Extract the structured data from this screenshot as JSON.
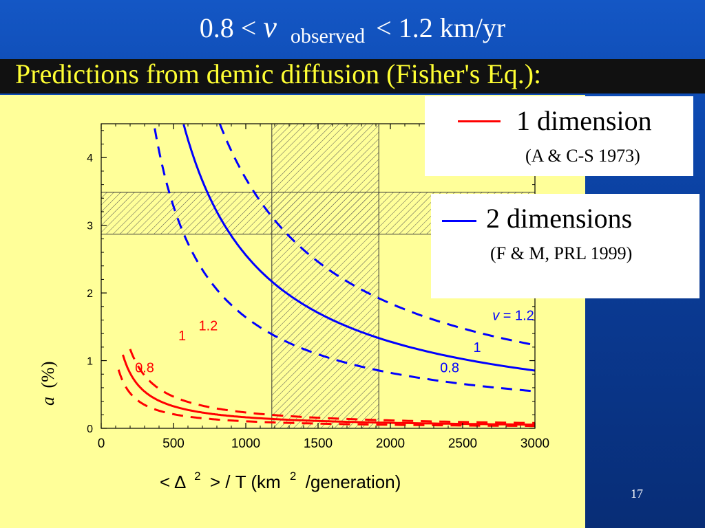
{
  "title": {
    "prefix": "0.8 <",
    "v_symbol": "v",
    "subscript": "observed",
    "suffix": "< 1.2 km/yr"
  },
  "subtitle": "Predictions from demic diffusion (Fisher's Eq.):",
  "legend": {
    "one_d": {
      "label": "1 dimension",
      "reference": "(A & C-S 1973)",
      "color": "#ff0000"
    },
    "two_d": {
      "label": "2 dimensions",
      "reference": "(F & M, PRL 1999)",
      "color": "#0000ff"
    }
  },
  "slide_number": "17",
  "chart_data": {
    "type": "line",
    "xlim": [
      0,
      3000
    ],
    "ylim": [
      0,
      4.5
    ],
    "xticks": [
      0,
      500,
      1000,
      1500,
      2000,
      2500,
      3000
    ],
    "yticks": [
      0,
      1,
      2,
      3,
      4
    ],
    "xlabel": "< Δ 2 > / T  (km 2 /generation)",
    "ylabel": "a  (%)",
    "shaded_regions": [
      {
        "axis": "y",
        "range": [
          2.87,
          3.49
        ]
      },
      {
        "axis": "x",
        "range": [
          1180,
          1920
        ]
      }
    ],
    "series": [
      {
        "dimension": 1,
        "v": 0.8,
        "color": "#ff0000",
        "dash": true,
        "k": 104,
        "x": [
          120,
          200,
          300,
          400,
          600,
          800,
          1000,
          1500,
          2000,
          2500,
          3000
        ]
      },
      {
        "dimension": 1,
        "v": 1,
        "color": "#ff0000",
        "dash": false,
        "k": 163,
        "x": [
          150,
          200,
          300,
          400,
          600,
          800,
          1000,
          1500,
          2000,
          2500,
          3000
        ]
      },
      {
        "dimension": 1,
        "v": 1.2,
        "color": "#ff0000",
        "dash": true,
        "k": 234,
        "x": [
          200,
          300,
          400,
          600,
          800,
          1000,
          1500,
          2000,
          2500,
          3000
        ]
      },
      {
        "dimension": 2,
        "v": 0.8,
        "color": "#0000ff",
        "dash": true,
        "k": 1640,
        "x": [
          370,
          500,
          700,
          1000,
          1500,
          2000,
          2500,
          3000
        ]
      },
      {
        "dimension": 2,
        "v": 1,
        "color": "#0000ff",
        "dash": false,
        "k": 2560,
        "x": [
          570,
          700,
          1000,
          1500,
          2000,
          2500,
          3000
        ]
      },
      {
        "dimension": 2,
        "v": 1.2,
        "color": "#0000ff",
        "dash": true,
        "k": 3690,
        "x": [
          820,
          1000,
          1500,
          2000,
          2500,
          3000
        ]
      }
    ],
    "curve_labels": [
      {
        "text": "0.8",
        "color": "#ff0000",
        "at": [
          300,
          0.83
        ]
      },
      {
        "text": "1",
        "color": "#ff0000",
        "at": [
          560,
          1.3
        ]
      },
      {
        "text": "1.2",
        "color": "#ff0000",
        "at": [
          740,
          1.45
        ]
      },
      {
        "text": "0.8",
        "color": "#0000ff",
        "at": [
          2410,
          0.83
        ]
      },
      {
        "text": "1",
        "color": "#0000ff",
        "at": [
          2600,
          1.13
        ]
      },
      {
        "text": "v = 1.2",
        "color": "#0000ff",
        "at": [
          2850,
          1.6
        ]
      }
    ]
  }
}
